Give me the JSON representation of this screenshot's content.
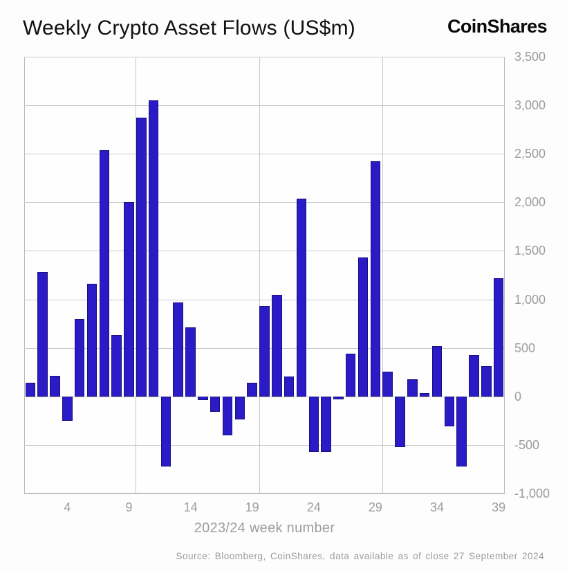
{
  "header": {
    "title": "Weekly Crypto Asset Flows (US$m)",
    "logo": "CoinShares"
  },
  "chart_data": {
    "type": "bar",
    "title": "Weekly Crypto Asset Flows (US$m)",
    "xlabel": "2023/24 week number",
    "ylabel": "",
    "x": [
      1,
      2,
      3,
      4,
      5,
      6,
      7,
      8,
      9,
      10,
      11,
      12,
      13,
      14,
      15,
      16,
      17,
      18,
      19,
      20,
      21,
      22,
      23,
      24,
      25,
      26,
      27,
      28,
      29,
      30,
      31,
      32,
      33,
      34,
      35,
      36,
      37,
      38,
      39
    ],
    "values": [
      140,
      1280,
      215,
      -250,
      800,
      1160,
      2535,
      635,
      2000,
      2870,
      3050,
      -720,
      970,
      715,
      -35,
      -160,
      -400,
      -235,
      140,
      930,
      1045,
      205,
      2035,
      -570,
      -570,
      -30,
      440,
      1435,
      2425,
      255,
      -520,
      180,
      35,
      520,
      -310,
      -725,
      430,
      310,
      1220
    ],
    "xticks": [
      4,
      9,
      14,
      19,
      24,
      29,
      34,
      39
    ],
    "yticks": [
      {
        "v": 3500,
        "label": "3,500"
      },
      {
        "v": 3000,
        "label": "3,000"
      },
      {
        "v": 2500,
        "label": "2,500"
      },
      {
        "v": 2000,
        "label": "2,000"
      },
      {
        "v": 1500,
        "label": "1,500"
      },
      {
        "v": 1000,
        "label": "1,000"
      },
      {
        "v": 500,
        "label": "500"
      },
      {
        "v": 0,
        "label": "0"
      },
      {
        "v": -500,
        "label": "-500"
      },
      {
        "v": -1000,
        "label": "-1,000"
      }
    ],
    "ylim": [
      -1000,
      3500
    ],
    "grid": true,
    "vgrid_after_weeks": [
      9,
      19,
      29
    ],
    "bar_color": "#2b1bc7",
    "bar_border_color": "#18107e",
    "legend": null
  },
  "footer": {
    "source": "Source: Bloomberg, CoinShares, data available as of close 27 September 2024"
  }
}
